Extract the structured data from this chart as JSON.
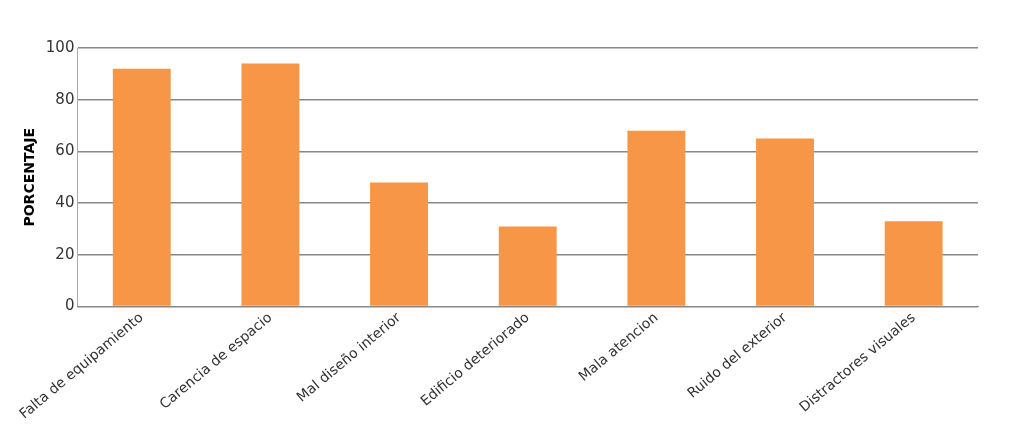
{
  "chart_data": {
    "type": "bar",
    "ylabel": "PORCENTAJE",
    "categories": [
      "Falta de equipamiento",
      "Carencia de espacio",
      "Mal diseño interior",
      "Edificio deteriorado",
      "Mala atencion",
      "Ruido del exterior",
      "Distractores visuales"
    ],
    "values": [
      92,
      94,
      48,
      31,
      68,
      65,
      33
    ],
    "color": "#f79646",
    "ylim": [
      0,
      100
    ],
    "yticks": [
      0,
      20,
      40,
      60,
      80,
      100
    ],
    "grid": "y",
    "legend": false
  }
}
